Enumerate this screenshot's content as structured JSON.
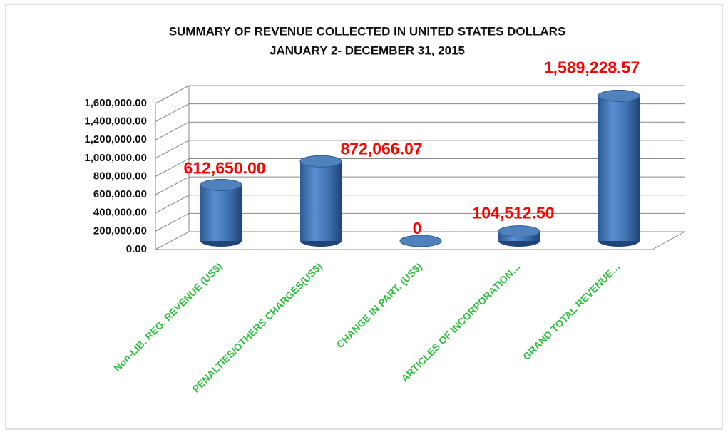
{
  "chart_data": {
    "type": "bar3d",
    "title": "SUMMARY OF REVENUE  COLLECTED IN UNITED STATES DOLLARS",
    "subtitle": "JANUARY 2- DECEMBER 31, 2015",
    "categories": [
      "Non-LIB. REG. REVENUE (US$)",
      "PENALTIES/OTHERS CHARGES(US$)",
      "CHANGE IN PART. (US$)",
      "ARTICLES OF INCORPORATION…",
      "GRAND TOTAL REVENUE…"
    ],
    "values": [
      612650,
      872066.07,
      0,
      104512.5,
      1589228.57
    ],
    "value_labels": [
      "612,650.00",
      "872,066.07",
      "0",
      "104,512.50",
      "1,589,228.57"
    ],
    "color": "#4f81bd",
    "value_label_color": "#ff0000",
    "category_label_color": "#2fbf3f",
    "ylim": [
      0,
      1600000
    ],
    "yticks": [
      {
        "value": 0,
        "label": "0.00"
      },
      {
        "value": 200000,
        "label": "200,000.00"
      },
      {
        "value": 400000,
        "label": "400,000.00"
      },
      {
        "value": 600000,
        "label": "600,000.00"
      },
      {
        "value": 800000,
        "label": "800,000.00"
      },
      {
        "value": 1000000,
        "label": "1,000,000.00"
      },
      {
        "value": 1200000,
        "label": "1,200,000.00"
      },
      {
        "value": 1400000,
        "label": "1,400,000.00"
      },
      {
        "value": 1600000,
        "label": "1,600,000.00"
      }
    ],
    "grid": true
  }
}
